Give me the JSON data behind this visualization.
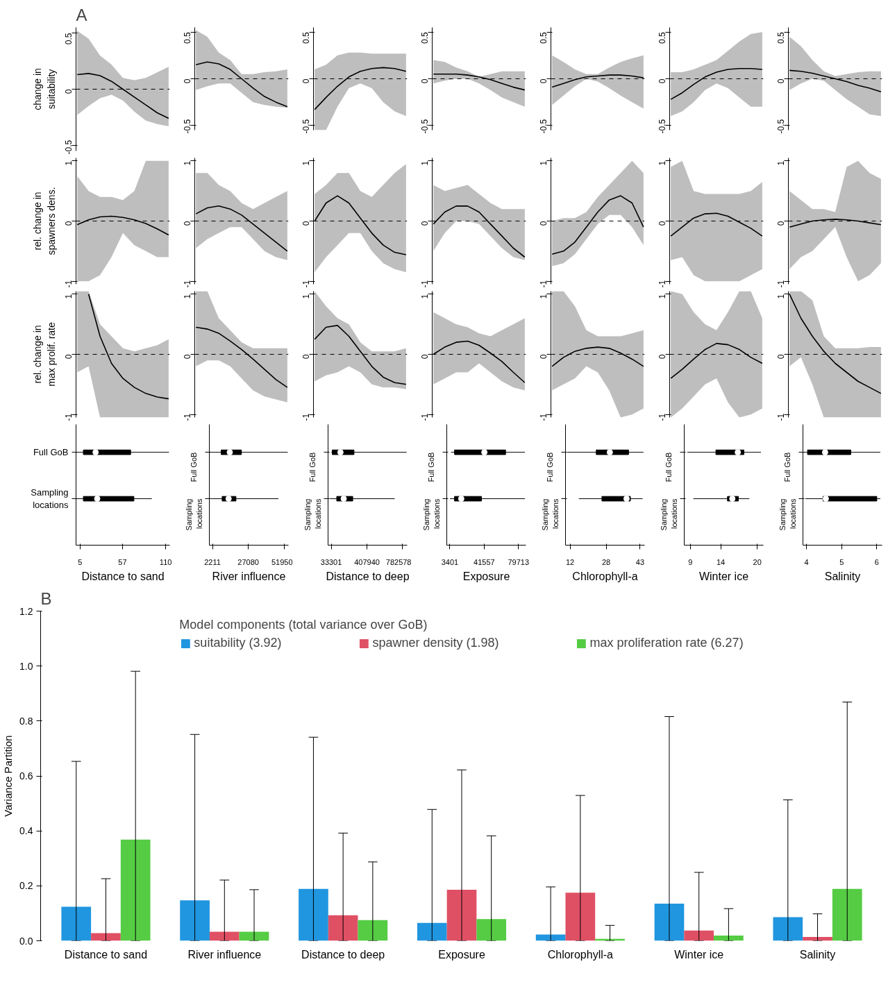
{
  "chart_data": [
    {
      "type": "line",
      "annotations": [
        "A"
      ],
      "ylabel": "change in suitability",
      "categories": [
        null,
        null,
        null,
        null,
        null,
        null,
        null,
        null,
        null
      ],
      "series": [
        {
          "color": "#000000",
          "values": [
            0.13,
            0.14,
            0.12,
            0.07,
            0.0,
            -0.07,
            -0.14,
            -0.21,
            -0.26
          ],
          "lower": [
            -0.23,
            -0.15,
            -0.08,
            -0.05,
            -0.1,
            -0.2,
            -0.28,
            -0.31,
            -0.33
          ],
          "upper": [
            0.52,
            0.45,
            0.3,
            0.22,
            0.1,
            0.08,
            0.1,
            0.15,
            0.2
          ]
        }
      ],
      "ylim": [
        -0.55,
        0.55
      ],
      "yticks": [
        -0.5,
        0,
        0.5
      ],
      "ref_lines": [
        {
          "axis": "y",
          "value": 0,
          "color": "#000000",
          "line_style": "dashed"
        }
      ],
      "tick_labels": "y"
    },
    {
      "type": "line",
      "categories": [
        null,
        null,
        null,
        null,
        null,
        null,
        null,
        null,
        null
      ],
      "series": [
        {
          "color": "#000000",
          "values": [
            0.15,
            0.18,
            0.16,
            0.1,
            0.0,
            -0.1,
            -0.19,
            -0.25,
            -0.3
          ],
          "lower": [
            -0.12,
            -0.08,
            -0.05,
            -0.05,
            -0.15,
            -0.25,
            -0.28,
            -0.3,
            -0.31
          ],
          "upper": [
            0.52,
            0.45,
            0.28,
            0.2,
            0.05,
            0.05,
            0.07,
            0.08,
            0.1
          ]
        }
      ],
      "ylim": [
        -0.55,
        0.55
      ],
      "yticks": [
        -0.5,
        0,
        0.5
      ],
      "ref_lines": [
        {
          "axis": "y",
          "value": 0,
          "color": "#000000",
          "line_style": "dashed"
        }
      ],
      "tick_labels": "y"
    },
    {
      "type": "line",
      "categories": [
        null,
        null,
        null,
        null,
        null,
        null,
        null,
        null,
        null
      ],
      "series": [
        {
          "color": "#000000",
          "values": [
            -0.33,
            -0.2,
            -0.08,
            0.02,
            0.08,
            0.11,
            0.12,
            0.11,
            0.08
          ],
          "lower": [
            -0.55,
            -0.55,
            -0.3,
            -0.1,
            -0.05,
            -0.1,
            -0.25,
            -0.35,
            -0.4
          ],
          "upper": [
            0.1,
            0.15,
            0.25,
            0.28,
            0.28,
            0.27,
            0.27,
            0.27,
            0.27
          ]
        }
      ],
      "ylim": [
        -0.55,
        0.55
      ],
      "yticks": [
        -0.5,
        0,
        0.5
      ],
      "ref_lines": [
        {
          "axis": "y",
          "value": 0,
          "color": "#000000",
          "line_style": "dashed"
        }
      ],
      "tick_labels": "y"
    },
    {
      "type": "line",
      "categories": [
        null,
        null,
        null,
        null,
        null,
        null,
        null,
        null,
        null
      ],
      "series": [
        {
          "color": "#000000",
          "values": [
            0.05,
            0.05,
            0.05,
            0.04,
            0.02,
            -0.01,
            -0.05,
            -0.09,
            -0.12
          ],
          "lower": [
            -0.05,
            -0.02,
            0.0,
            0.0,
            -0.05,
            -0.12,
            -0.2,
            -0.25,
            -0.3
          ],
          "upper": [
            0.2,
            0.18,
            0.12,
            0.08,
            0.02,
            0.05,
            0.08,
            0.08,
            0.08
          ]
        }
      ],
      "ylim": [
        -0.55,
        0.55
      ],
      "yticks": [
        -0.5,
        0,
        0.5
      ],
      "ref_lines": [
        {
          "axis": "y",
          "value": 0,
          "color": "#000000",
          "line_style": "dashed"
        }
      ],
      "tick_labels": "y"
    },
    {
      "type": "line",
      "categories": [
        null,
        null,
        null,
        null,
        null,
        null,
        null,
        null,
        null
      ],
      "series": [
        {
          "color": "#000000",
          "values": [
            -0.09,
            -0.05,
            -0.01,
            0.02,
            0.03,
            0.04,
            0.04,
            0.03,
            0.01
          ],
          "lower": [
            -0.28,
            -0.18,
            -0.08,
            0.0,
            -0.03,
            -0.1,
            -0.18,
            -0.25,
            -0.32
          ],
          "upper": [
            0.25,
            0.18,
            0.1,
            0.05,
            0.05,
            0.12,
            0.18,
            0.22,
            0.25
          ]
        }
      ],
      "ylim": [
        -0.55,
        0.55
      ],
      "yticks": [
        -0.5,
        0,
        0.5
      ],
      "ref_lines": [
        {
          "axis": "y",
          "value": 0,
          "color": "#000000",
          "line_style": "dashed"
        }
      ],
      "tick_labels": "y"
    },
    {
      "type": "line",
      "categories": [
        null,
        null,
        null,
        null,
        null,
        null,
        null,
        null,
        null
      ],
      "series": [
        {
          "color": "#000000",
          "values": [
            -0.22,
            -0.15,
            -0.06,
            0.02,
            0.07,
            0.1,
            0.11,
            0.11,
            0.1
          ],
          "lower": [
            -0.4,
            -0.35,
            -0.25,
            -0.12,
            -0.05,
            -0.1,
            -0.2,
            -0.3,
            -0.3
          ],
          "upper": [
            0.07,
            0.07,
            0.1,
            0.15,
            0.2,
            0.3,
            0.4,
            0.48,
            0.5
          ]
        }
      ],
      "ylim": [
        -0.55,
        0.55
      ],
      "yticks": [
        -0.5,
        0,
        0.5
      ],
      "ref_lines": [
        {
          "axis": "y",
          "value": 0,
          "color": "#000000",
          "line_style": "dashed"
        }
      ],
      "tick_labels": "y"
    },
    {
      "type": "line",
      "categories": [
        null,
        null,
        null,
        null,
        null,
        null,
        null,
        null,
        null
      ],
      "series": [
        {
          "color": "#000000",
          "values": [
            0.09,
            0.08,
            0.06,
            0.03,
            0.0,
            -0.03,
            -0.07,
            -0.1,
            -0.14
          ],
          "lower": [
            -0.12,
            -0.05,
            0.0,
            -0.02,
            -0.12,
            -0.22,
            -0.3,
            -0.38,
            -0.4
          ],
          "upper": [
            0.45,
            0.35,
            0.2,
            0.08,
            0.03,
            0.05,
            0.07,
            0.08,
            0.08
          ]
        }
      ],
      "ylim": [
        -0.55,
        0.55
      ],
      "yticks": [
        -0.5,
        0,
        0.5
      ],
      "ref_lines": [
        {
          "axis": "y",
          "value": 0,
          "color": "#000000",
          "line_style": "dashed"
        }
      ],
      "tick_labels": "y"
    },
    {
      "type": "line",
      "ylabel": "rel. change in spawners dens.",
      "categories": [
        null,
        null,
        null,
        null,
        null,
        null,
        null,
        null,
        null
      ],
      "series": [
        {
          "color": "#000000",
          "values": [
            -0.06,
            0.02,
            0.07,
            0.08,
            0.06,
            0.02,
            -0.04,
            -0.13,
            -0.23
          ],
          "lower": [
            -1.0,
            -1.0,
            -0.9,
            -0.6,
            -0.2,
            -0.4,
            -0.5,
            -0.6,
            -0.6
          ],
          "upper": [
            0.75,
            0.5,
            0.4,
            0.4,
            0.35,
            0.5,
            1.0,
            1.0,
            1.0
          ]
        }
      ],
      "ylim": [
        -1.05,
        1.05
      ],
      "yticks": [
        -1,
        0,
        1
      ],
      "ref_lines": [
        {
          "axis": "y",
          "value": 0,
          "color": "#000000",
          "line_style": "dashed"
        }
      ],
      "tick_labels": "y"
    },
    {
      "type": "line",
      "categories": [
        null,
        null,
        null,
        null,
        null,
        null,
        null,
        null,
        null
      ],
      "series": [
        {
          "color": "#000000",
          "values": [
            0.12,
            0.22,
            0.25,
            0.2,
            0.1,
            -0.05,
            -0.2,
            -0.35,
            -0.5
          ],
          "lower": [
            -0.45,
            -0.3,
            -0.2,
            -0.1,
            -0.1,
            -0.3,
            -0.5,
            -0.6,
            -0.65
          ],
          "upper": [
            0.8,
            0.8,
            0.6,
            0.5,
            0.3,
            0.2,
            0.3,
            0.4,
            0.5
          ]
        }
      ],
      "ylim": [
        -1.05,
        1.05
      ],
      "yticks": [
        -1,
        0,
        1
      ],
      "ref_lines": [
        {
          "axis": "y",
          "value": 0,
          "color": "#000000",
          "line_style": "dashed"
        }
      ],
      "tick_labels": "y"
    },
    {
      "type": "line",
      "categories": [
        null,
        null,
        null,
        null,
        null,
        null,
        null,
        null,
        null
      ],
      "series": [
        {
          "color": "#000000",
          "values": [
            0.0,
            0.3,
            0.42,
            0.3,
            0.05,
            -0.2,
            -0.4,
            -0.52,
            -0.56
          ],
          "lower": [
            -0.85,
            -0.6,
            -0.4,
            -0.2,
            -0.2,
            -0.5,
            -0.7,
            -0.8,
            -0.85
          ],
          "upper": [
            0.45,
            0.6,
            0.8,
            0.8,
            0.5,
            0.4,
            0.6,
            0.8,
            0.95
          ]
        }
      ],
      "ylim": [
        -1.05,
        1.05
      ],
      "yticks": [
        -1,
        0,
        1
      ],
      "ref_lines": [
        {
          "axis": "y",
          "value": 0,
          "color": "#000000",
          "line_style": "dashed"
        }
      ],
      "tick_labels": "y"
    },
    {
      "type": "line",
      "categories": [
        null,
        null,
        null,
        null,
        null,
        null,
        null,
        null,
        null
      ],
      "series": [
        {
          "color": "#000000",
          "values": [
            -0.05,
            0.15,
            0.25,
            0.25,
            0.15,
            -0.05,
            -0.25,
            -0.45,
            -0.6
          ],
          "lower": [
            -0.5,
            -0.2,
            0.0,
            0.0,
            -0.05,
            -0.25,
            -0.45,
            -0.6,
            -0.65
          ],
          "upper": [
            0.6,
            0.5,
            0.55,
            0.6,
            0.45,
            0.3,
            0.2,
            0.2,
            0.2
          ]
        }
      ],
      "ylim": [
        -1.05,
        1.05
      ],
      "yticks": [
        -1,
        0,
        1
      ],
      "ref_lines": [
        {
          "axis": "y",
          "value": 0,
          "color": "#000000",
          "line_style": "dashed"
        }
      ],
      "tick_labels": "y"
    },
    {
      "type": "line",
      "categories": [
        null,
        null,
        null,
        null,
        null,
        null,
        null,
        null,
        null
      ],
      "series": [
        {
          "color": "#000000",
          "values": [
            -0.55,
            -0.5,
            -0.35,
            -0.1,
            0.15,
            0.35,
            0.42,
            0.3,
            -0.1
          ],
          "lower": [
            -0.75,
            -0.7,
            -0.55,
            -0.3,
            -0.05,
            0.1,
            0.1,
            -0.1,
            -0.4
          ],
          "upper": [
            0.0,
            0.05,
            0.05,
            0.15,
            0.4,
            0.6,
            0.8,
            1.0,
            0.8
          ]
        }
      ],
      "ylim": [
        -1.05,
        1.05
      ],
      "yticks": [
        -1,
        0,
        1
      ],
      "ref_lines": [
        {
          "axis": "y",
          "value": 0,
          "color": "#000000",
          "line_style": "dashed"
        }
      ],
      "tick_labels": "y"
    },
    {
      "type": "line",
      "categories": [
        null,
        null,
        null,
        null,
        null,
        null,
        null,
        null,
        null
      ],
      "series": [
        {
          "color": "#000000",
          "values": [
            -0.25,
            -0.1,
            0.05,
            0.12,
            0.13,
            0.08,
            -0.02,
            -0.12,
            -0.25
          ],
          "lower": [
            -0.65,
            -0.6,
            -0.9,
            -1.0,
            -1.0,
            -1.0,
            -1.0,
            -0.9,
            -0.8
          ],
          "upper": [
            0.9,
            1.0,
            0.5,
            0.45,
            0.45,
            0.45,
            0.45,
            0.5,
            0.65
          ]
        }
      ],
      "ylim": [
        -1.05,
        1.05
      ],
      "yticks": [
        -1,
        0,
        1
      ],
      "ref_lines": [
        {
          "axis": "y",
          "value": 0,
          "color": "#000000",
          "line_style": "dashed"
        }
      ],
      "tick_labels": "y"
    },
    {
      "type": "line",
      "categories": [
        null,
        null,
        null,
        null,
        null,
        null,
        null,
        null,
        null
      ],
      "series": [
        {
          "color": "#000000",
          "values": [
            -0.1,
            -0.05,
            0.0,
            0.02,
            0.03,
            0.02,
            0.0,
            -0.03,
            -0.06
          ],
          "lower": [
            -0.8,
            -0.6,
            -0.5,
            -0.3,
            -0.1,
            -0.6,
            -1.0,
            -0.9,
            -0.7
          ],
          "upper": [
            0.5,
            0.35,
            0.2,
            0.2,
            0.15,
            0.9,
            1.0,
            0.8,
            0.7
          ]
        }
      ],
      "ylim": [
        -1.05,
        1.05
      ],
      "yticks": [
        -1,
        0,
        1
      ],
      "ref_lines": [
        {
          "axis": "y",
          "value": 0,
          "color": "#000000",
          "line_style": "dashed"
        }
      ],
      "tick_labels": "y"
    },
    {
      "type": "line",
      "ylabel": "rel. change in max prolif. rate",
      "categories": [
        null,
        null,
        null,
        null,
        null,
        null,
        null,
        null,
        null
      ],
      "series": [
        {
          "color": "#000000",
          "values": [
            null,
            1.0,
            0.3,
            -0.15,
            -0.4,
            -0.55,
            -0.65,
            -0.71,
            -0.74
          ],
          "lower": [
            -0.3,
            -0.2,
            -1.05,
            -1.05,
            -1.05,
            -1.05,
            -1.05,
            -1.05,
            -1.05
          ],
          "upper": [
            1.05,
            1.05,
            0.5,
            0.3,
            0.1,
            0.05,
            0.1,
            0.15,
            0.25
          ]
        }
      ],
      "ylim": [
        -1.05,
        1.05
      ],
      "yticks": [
        -1,
        0,
        1
      ],
      "ref_lines": [
        {
          "axis": "y",
          "value": 0,
          "color": "#000000",
          "line_style": "dashed"
        }
      ],
      "tick_labels": "y"
    },
    {
      "type": "line",
      "categories": [
        null,
        null,
        null,
        null,
        null,
        null,
        null,
        null,
        null
      ],
      "series": [
        {
          "color": "#000000",
          "values": [
            0.45,
            0.42,
            0.35,
            0.22,
            0.08,
            -0.08,
            -0.25,
            -0.42,
            -0.55
          ],
          "lower": [
            -0.2,
            -0.1,
            -0.1,
            -0.2,
            -0.4,
            -0.6,
            -0.7,
            -0.75,
            -0.8
          ],
          "upper": [
            1.05,
            1.05,
            0.6,
            0.4,
            0.2,
            0.1,
            0.1,
            0.1,
            0.1
          ]
        }
      ],
      "ylim": [
        -1.05,
        1.05
      ],
      "yticks": [
        -1,
        0,
        1
      ],
      "ref_lines": [
        {
          "axis": "y",
          "value": 0,
          "color": "#000000",
          "line_style": "dashed"
        }
      ],
      "tick_labels": "y"
    },
    {
      "type": "line",
      "categories": [
        null,
        null,
        null,
        null,
        null,
        null,
        null,
        null,
        null
      ],
      "series": [
        {
          "color": "#000000",
          "values": [
            0.25,
            0.45,
            0.48,
            0.3,
            0.05,
            -0.2,
            -0.38,
            -0.47,
            -0.5
          ],
          "lower": [
            -0.45,
            -0.35,
            -0.3,
            -0.2,
            -0.3,
            -0.5,
            -0.55,
            -0.55,
            -0.58
          ],
          "upper": [
            1.05,
            0.8,
            0.6,
            0.5,
            0.2,
            0.05,
            0.05,
            0.05,
            0.1
          ]
        }
      ],
      "ylim": [
        -1.05,
        1.05
      ],
      "yticks": [
        -1,
        0,
        1
      ],
      "ref_lines": [
        {
          "axis": "y",
          "value": 0,
          "color": "#000000",
          "line_style": "dashed"
        }
      ],
      "tick_labels": "y"
    },
    {
      "type": "line",
      "categories": [
        null,
        null,
        null,
        null,
        null,
        null,
        null,
        null,
        null
      ],
      "series": [
        {
          "color": "#000000",
          "values": [
            0.0,
            0.12,
            0.2,
            0.22,
            0.15,
            0.02,
            -0.12,
            -0.3,
            -0.47
          ],
          "lower": [
            -0.5,
            -0.4,
            -0.3,
            -0.3,
            -0.15,
            -0.3,
            -0.45,
            -0.55,
            -0.6
          ],
          "upper": [
            0.7,
            0.6,
            0.5,
            0.45,
            0.35,
            0.3,
            0.4,
            0.5,
            0.6
          ]
        }
      ],
      "ylim": [
        -1.05,
        1.05
      ],
      "yticks": [
        -1,
        0,
        1
      ],
      "ref_lines": [
        {
          "axis": "y",
          "value": 0,
          "color": "#000000",
          "line_style": "dashed"
        }
      ],
      "tick_labels": "y"
    },
    {
      "type": "line",
      "categories": [
        null,
        null,
        null,
        null,
        null,
        null,
        null,
        null,
        null
      ],
      "series": [
        {
          "color": "#000000",
          "values": [
            -0.2,
            -0.05,
            0.05,
            0.1,
            0.12,
            0.1,
            0.02,
            -0.08,
            -0.2
          ],
          "lower": [
            -0.6,
            -0.5,
            -0.4,
            -0.2,
            -0.3,
            -0.6,
            -1.05,
            -1.0,
            -0.9
          ],
          "upper": [
            1.05,
            1.05,
            0.8,
            0.4,
            0.3,
            0.3,
            0.3,
            0.35,
            0.4
          ]
        }
      ],
      "ylim": [
        -1.05,
        1.05
      ],
      "yticks": [
        -1,
        0,
        1
      ],
      "ref_lines": [
        {
          "axis": "y",
          "value": 0,
          "color": "#000000",
          "line_style": "dashed"
        }
      ],
      "tick_labels": "y"
    },
    {
      "type": "line",
      "categories": [
        null,
        null,
        null,
        null,
        null,
        null,
        null,
        null,
        null
      ],
      "series": [
        {
          "color": "#000000",
          "values": [
            -0.4,
            -0.25,
            -0.08,
            0.08,
            0.18,
            0.16,
            0.08,
            -0.05,
            -0.15
          ],
          "lower": [
            -1.05,
            -0.9,
            -0.7,
            -0.5,
            -0.4,
            -0.8,
            -1.05,
            -1.0,
            -0.9
          ],
          "upper": [
            1.05,
            1.0,
            0.7,
            0.5,
            0.4,
            0.7,
            1.05,
            1.05,
            0.6
          ]
        }
      ],
      "ylim": [
        -1.05,
        1.05
      ],
      "yticks": [
        -1,
        0,
        1
      ],
      "ref_lines": [
        {
          "axis": "y",
          "value": 0,
          "color": "#000000",
          "line_style": "dashed"
        }
      ],
      "tick_labels": "y"
    },
    {
      "type": "line",
      "categories": [
        null,
        null,
        null,
        null,
        null,
        null,
        null,
        null,
        null
      ],
      "series": [
        {
          "color": "#000000",
          "values": [
            1.0,
            0.6,
            0.3,
            0.05,
            -0.15,
            -0.3,
            -0.45,
            -0.55,
            -0.65
          ],
          "lower": [
            -0.2,
            -0.05,
            -0.5,
            -1.05,
            -1.05,
            -1.05,
            -1.05,
            -1.05,
            -1.05
          ],
          "upper": [
            1.05,
            1.05,
            0.9,
            0.3,
            0.1,
            0.1,
            0.1,
            0.12,
            0.12
          ]
        }
      ],
      "ylim": [
        -1.05,
        1.05
      ],
      "yticks": [
        -1,
        0,
        1
      ],
      "ref_lines": [
        {
          "axis": "y",
          "value": 0,
          "color": "#000000",
          "line_style": "dashed"
        }
      ],
      "tick_labels": "y"
    },
    {
      "type": "box",
      "orientation": "horizontal",
      "categories": [
        "Full GoB",
        "Sampling locations"
      ],
      "boxes": [
        {
          "low": 1,
          "q1": 9,
          "median": 24,
          "q3": 67,
          "high": 114
        },
        {
          "low": 1,
          "q1": 9,
          "median": 26,
          "q3": 71,
          "high": 93
        }
      ],
      "xlim": [
        0,
        115
      ],
      "xticks": [
        5,
        57,
        110
      ],
      "xlabel": "Distance to sand"
    },
    {
      "type": "box",
      "orientation": "horizontal",
      "categories": [
        "Full GoB",
        "Sampling locations"
      ],
      "boxes": [
        {
          "low": 150,
          "q1": 8200,
          "median": 14200,
          "q3": 22300,
          "high": 54500
        },
        {
          "low": 840,
          "q1": 8900,
          "median": 13400,
          "q3": 18500,
          "high": 48000
        }
      ],
      "xlim": [
        0,
        55000
      ],
      "xticks": [
        2211,
        27080,
        51950
      ],
      "xlabel": "River influence"
    },
    {
      "type": "box",
      "orientation": "horizontal",
      "categories": [
        "Full GoB",
        "Sampling locations"
      ],
      "boxes": [
        {
          "low": 35000,
          "q1": 44000,
          "median": 130000,
          "q3": 272000,
          "high": 824000
        },
        {
          "low": 18000,
          "q1": 91000,
          "median": 164000,
          "q3": 259000,
          "high": 699000
        }
      ],
      "xlim": [
        0,
        830000
      ],
      "xticks": [
        33301,
        407940,
        782578
      ],
      "xlabel": "Distance to deep"
    },
    {
      "type": "box",
      "orientation": "horizontal",
      "categories": [
        "Full GoB",
        "Sampling locations"
      ],
      "boxes": [
        {
          "low": 4700,
          "q1": 8600,
          "median": 41800,
          "q3": 65400,
          "high": 86900
        },
        {
          "low": 3500,
          "q1": 8600,
          "median": 16100,
          "q3": 38600,
          "high": 86900
        }
      ],
      "xlim": [
        0,
        88000
      ],
      "xticks": [
        3401,
        41557,
        79713
      ],
      "xlabel": "Exposure"
    },
    {
      "type": "box",
      "orientation": "horizontal",
      "categories": [
        "Full GoB",
        "Sampling locations"
      ],
      "boxes": [
        {
          "low": 10.8,
          "q1": 23.6,
          "median": 29.6,
          "q3": 37.9,
          "high": 44.5
        },
        {
          "low": 15.9,
          "q1": 26.1,
          "median": 37.0,
          "q3": 38.7,
          "high": 44.1
        }
      ],
      "xlim": [
        10,
        45
      ],
      "xticks": [
        12,
        28,
        43
      ],
      "xlabel": "Chlorophyll-a"
    },
    {
      "type": "box",
      "orientation": "horizontal",
      "categories": [
        "Full GoB",
        "Sampling locations"
      ],
      "boxes": [
        {
          "low": 8.5,
          "q1": 13.2,
          "median": 16.8,
          "q3": 17.8,
          "high": 20.6
        },
        {
          "low": 9.5,
          "q1": 15.1,
          "median": 15.9,
          "q3": 16.9,
          "high": 18.7
        }
      ],
      "xlim": [
        8,
        21
      ],
      "xticks": [
        9,
        14,
        20
      ],
      "xlabel": "Winter ice"
    },
    {
      "type": "box",
      "orientation": "horizontal",
      "categories": [
        "Full GoB",
        "Sampling locations"
      ],
      "boxes": [
        {
          "low": 3.92,
          "q1": 4.03,
          "median": 4.53,
          "q3": 5.26,
          "high": 6.1
        },
        {
          "low": 3.97,
          "q1": 4.47,
          "median": 4.55,
          "q3": 6.0,
          "high": 6.1
        }
      ],
      "xlim": [
        3.9,
        6.15
      ],
      "xticks": [
        4,
        5,
        6
      ],
      "xlabel": "Salinity"
    },
    {
      "type": "bar",
      "annotations": [
        "B"
      ],
      "categories": [
        "Distance to sand",
        "River influence",
        "Distance to deep",
        "Exposure",
        "Chlorophyll-a",
        "Winter ice",
        "Salinity"
      ],
      "ylabel": "Variance Partition",
      "legend_title": "Model components (total variance over GoB)",
      "legend": "top",
      "grid": false,
      "ylim": [
        0,
        1.2
      ],
      "yticks": [
        {
          "value": 0,
          "label": "0.0"
        },
        {
          "value": 0.2,
          "label": "0.2"
        },
        {
          "value": 0.4,
          "label": "0.4"
        },
        {
          "value": 0.6,
          "label": "0.6"
        },
        {
          "value": 0.8,
          "label": "0.8"
        },
        {
          "value": 1.0,
          "label": "1.0"
        },
        {
          "value": 1.2,
          "label": "1.2"
        }
      ],
      "series": [
        {
          "name": "suitability (3.92)",
          "color": "#2196e0",
          "values": [
            0.124,
            0.147,
            0.189,
            0.065,
            0.023,
            0.135,
            0.086
          ],
          "errors": [
            [
              0,
              0.653
            ],
            [
              0,
              0.751
            ],
            [
              0,
              0.741
            ],
            [
              0,
              0.478
            ],
            [
              0,
              0.196
            ],
            [
              0,
              0.816
            ],
            [
              0,
              0.513
            ]
          ]
        },
        {
          "name": "spawner density (1.98)",
          "color": "#e05065",
          "values": [
            0.028,
            0.033,
            0.093,
            0.186,
            0.175,
            0.037,
            0.014
          ],
          "errors": [
            [
              0,
              0.226
            ],
            [
              0,
              0.221
            ],
            [
              0,
              0.392
            ],
            [
              0,
              0.622
            ],
            [
              0,
              0.529
            ],
            [
              0,
              0.249
            ],
            [
              0,
              0.098
            ]
          ]
        },
        {
          "name": "max proliferation rate (6.27)",
          "color": "#55cc44",
          "values": [
            0.368,
            0.033,
            0.075,
            0.079,
            0.007,
            0.019,
            0.189
          ],
          "errors": [
            [
              0,
              0.981
            ],
            [
              0,
              0.186
            ],
            [
              0,
              0.287
            ],
            [
              0,
              0.382
            ],
            [
              0,
              0.056
            ],
            [
              0,
              0.117
            ],
            [
              0,
              0.869
            ]
          ]
        }
      ]
    }
  ]
}
